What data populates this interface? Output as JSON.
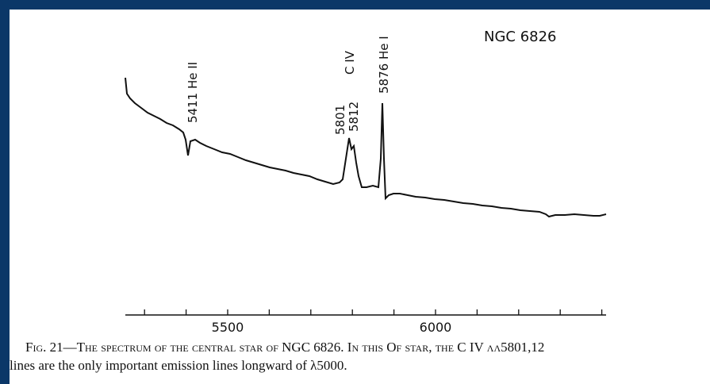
{
  "figure": {
    "title": "NGC 6826",
    "line_labels": [
      "5411 He II",
      "C IV",
      "5801",
      "5812",
      "5876 He I"
    ],
    "axis_labels": [
      "5500",
      "6000"
    ],
    "caption": [
      "Fig. 21—The spectrum of the central star of NGC 6826. In this Of star, the C IV λλ5801,12",
      "lines are the only important emission lines longward of λ5000."
    ]
  }
}
